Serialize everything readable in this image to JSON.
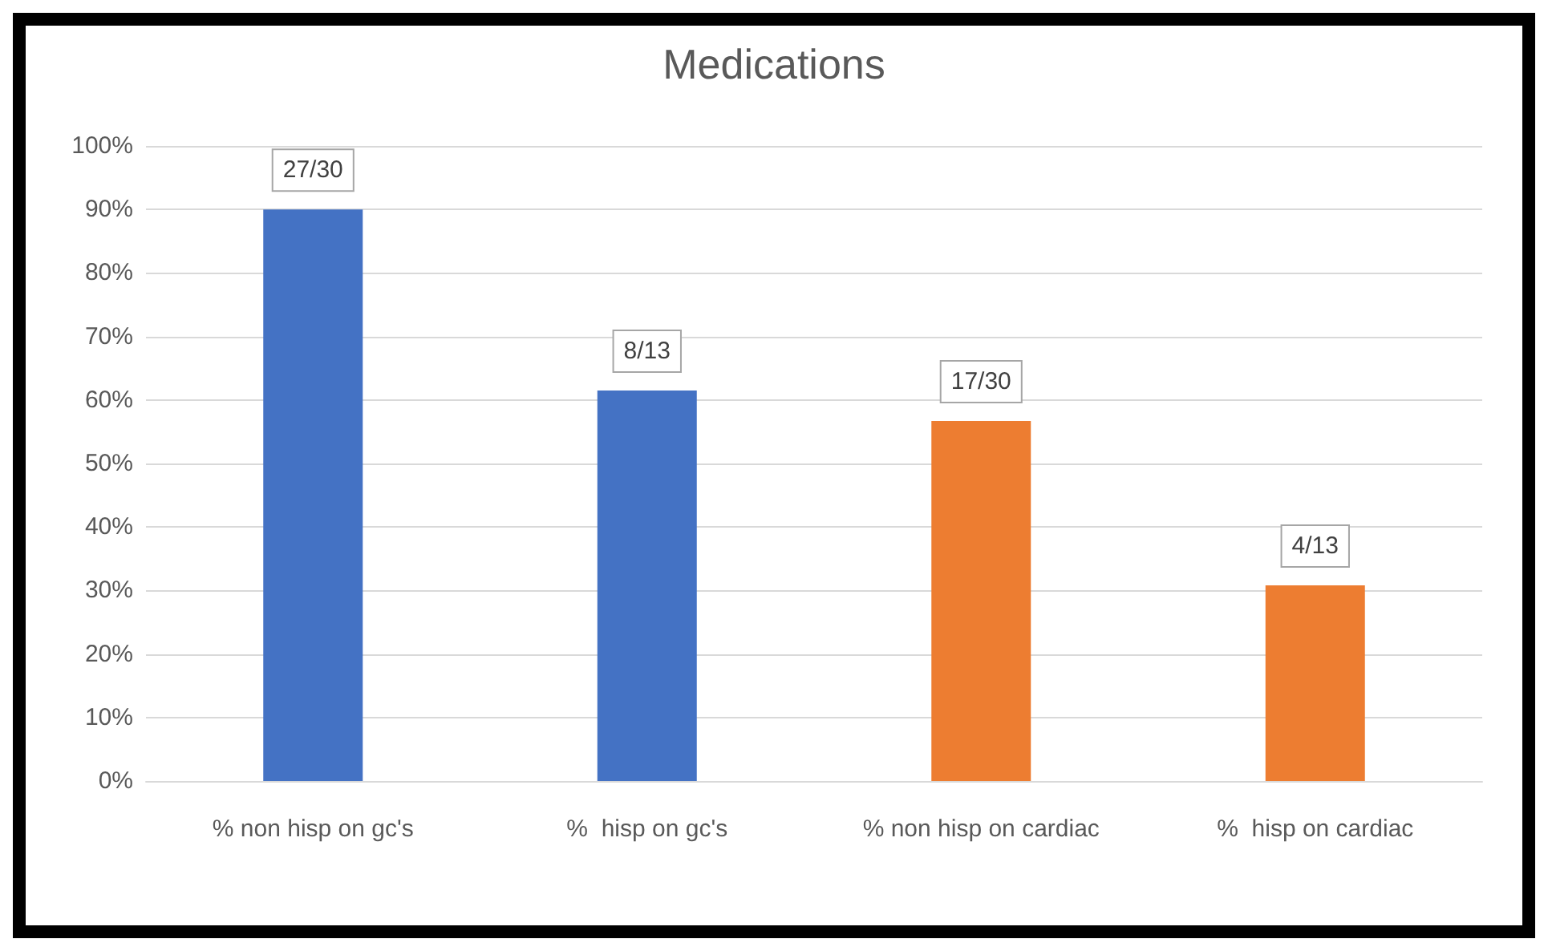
{
  "chart_data": {
    "type": "bar",
    "title": "Medications",
    "categories": [
      "% non hisp on gc's",
      "%  hisp on gc's",
      "% non hisp on cardiac",
      "%  hisp on cardiac"
    ],
    "values": [
      90,
      61.5,
      56.7,
      30.8
    ],
    "colors": [
      "#4472c4",
      "#4472c4",
      "#ed7d31",
      "#ed7d31"
    ],
    "value_labels": [
      "27/30",
      "8/13",
      "17/30",
      "4/13"
    ],
    "ylim": [
      0,
      100
    ],
    "yticks": [
      {
        "value": 0,
        "label": "0%"
      },
      {
        "value": 10,
        "label": "10%"
      },
      {
        "value": 20,
        "label": "20%"
      },
      {
        "value": 30,
        "label": "30%"
      },
      {
        "value": 40,
        "label": "40%"
      },
      {
        "value": 50,
        "label": "50%"
      },
      {
        "value": 60,
        "label": "60%"
      },
      {
        "value": 70,
        "label": "70%"
      },
      {
        "value": 80,
        "label": "80%"
      },
      {
        "value": 90,
        "label": "90%"
      },
      {
        "value": 100,
        "label": "100%"
      }
    ],
    "grid": "y"
  }
}
